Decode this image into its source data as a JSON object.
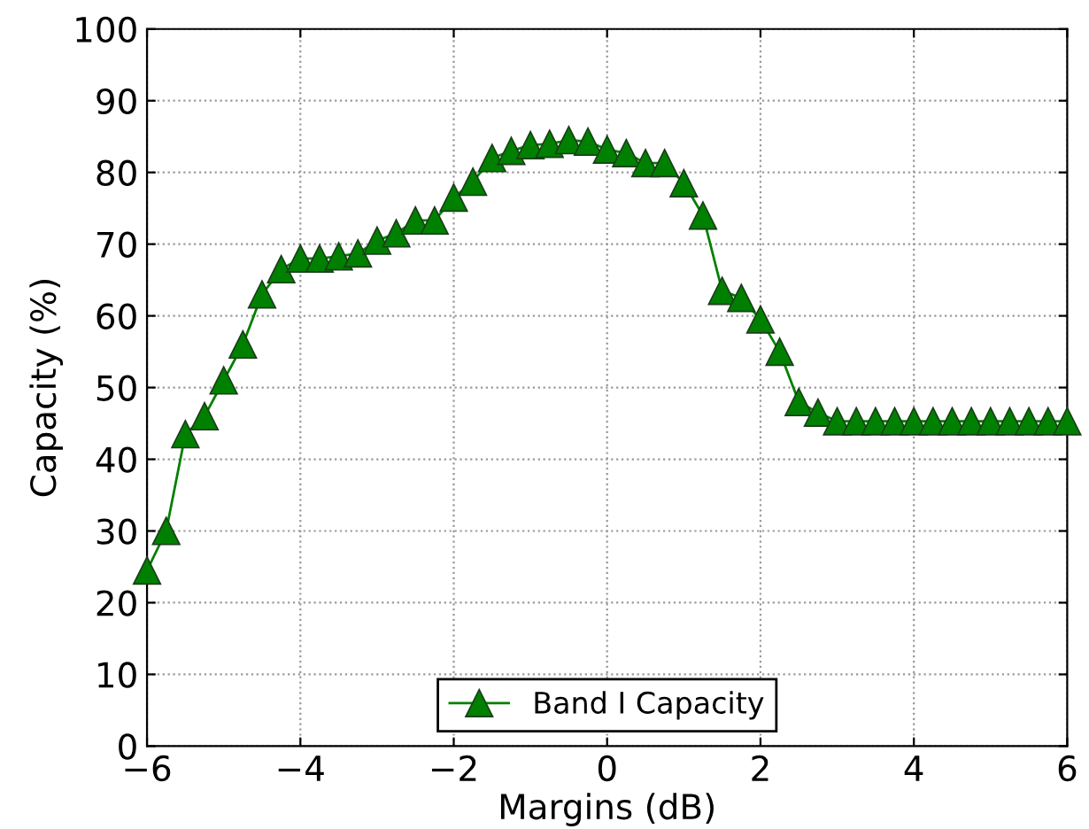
{
  "chart_data": {
    "type": "line",
    "xlabel": "Margins (dB)",
    "ylabel": "Capacity (%)",
    "x": [
      -6,
      -5.75,
      -5.5,
      -5.25,
      -5,
      -4.75,
      -4.5,
      -4.25,
      -4,
      -3.75,
      -3.5,
      -3.25,
      -3,
      -2.75,
      -2.5,
      -2.25,
      -2,
      -1.75,
      -1.5,
      -1.25,
      -1,
      -0.75,
      -0.5,
      -0.25,
      0,
      0.25,
      0.5,
      0.75,
      1,
      1.25,
      1.5,
      1.75,
      2,
      2.25,
      2.5,
      2.75,
      3,
      3.25,
      3.5,
      3.75,
      4,
      4.25,
      4.5,
      4.75,
      5,
      5.25,
      5.5,
      5.75,
      6
    ],
    "series": [
      {
        "name": "Band I Capacity",
        "color": "#008000",
        "values": [
          24.5,
          30,
          43.5,
          46,
          51,
          56,
          63,
          66.5,
          68,
          68,
          68.3,
          68.7,
          70.5,
          71.5,
          73.3,
          73.3,
          76.5,
          78.7,
          82,
          83,
          83.8,
          84,
          84.5,
          84.3,
          83.2,
          82.7,
          81.3,
          81.3,
          78.5,
          74,
          63.5,
          62.5,
          59.5,
          55,
          48,
          46.5,
          45.3,
          45.3,
          45.3,
          45.3,
          45.3,
          45.3,
          45.3,
          45.3,
          45.3,
          45.3,
          45.3,
          45.3,
          45.3
        ]
      }
    ],
    "xlim": [
      -6,
      6
    ],
    "xticks": [
      {
        "value": -6,
        "label": "−6"
      },
      {
        "value": -4,
        "label": "−4"
      },
      {
        "value": -2,
        "label": "−2"
      },
      0,
      2,
      4,
      6
    ],
    "ylim": [
      0,
      100
    ],
    "yticks": [
      0,
      10,
      20,
      30,
      40,
      50,
      60,
      70,
      80,
      90,
      100
    ],
    "grid": true,
    "legend": "bottom",
    "marker": "triangle",
    "line_style": "solid"
  }
}
